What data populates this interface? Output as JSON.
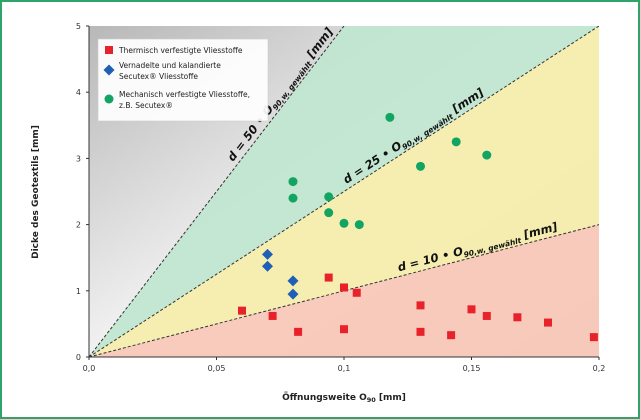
{
  "chart_data": {
    "type": "scatter",
    "xlabel": "Öffnungsweite O90 [mm]",
    "xlabel_main": "Öffnungsweite O",
    "xlabel_sub": "90",
    "xlabel_unit": " [mm]",
    "ylabel": "Dicke des Geotextils [mm]",
    "xlim": [
      0,
      0.2
    ],
    "ylim": [
      0,
      5
    ],
    "x_ticks": [
      "0,0",
      "0,05",
      "0,1",
      "0,15",
      "0,2"
    ],
    "x_tick_values": [
      0,
      0.05,
      0.1,
      0.15,
      0.2
    ],
    "y_ticks": [
      "0",
      "1",
      "2",
      "3",
      "4",
      "5"
    ],
    "y_tick_values": [
      0,
      1,
      2,
      3,
      4,
      5
    ],
    "grid": false,
    "legend_position": "top-left",
    "bands": [
      {
        "factor": 50,
        "color": "#e6e6e6",
        "label_main": "d = 50 • O",
        "label_sub": "90,w, gewählt",
        "label_end": " [mm]"
      },
      {
        "factor": 25,
        "color": "#bfe6cf",
        "label_main": "d = 25 • O",
        "label_sub": "90,w, gewählt",
        "label_end": " [mm]"
      },
      {
        "factor": 10,
        "color": "#f6eeaa",
        "label_main": "d = 10 • O",
        "label_sub": "90,w, gewählt",
        "label_end": " [mm]"
      },
      {
        "factor": 0,
        "color": "#f8c8b8"
      }
    ],
    "series": [
      {
        "name": "Thermisch verfestigte Vliesstoffe",
        "marker": "square",
        "color": "#e8222a",
        "points": [
          [
            0.06,
            0.7
          ],
          [
            0.072,
            0.62
          ],
          [
            0.082,
            0.38
          ],
          [
            0.094,
            1.2
          ],
          [
            0.1,
            1.05
          ],
          [
            0.1,
            0.42
          ],
          [
            0.105,
            0.97
          ],
          [
            0.13,
            0.78
          ],
          [
            0.13,
            0.38
          ],
          [
            0.142,
            0.33
          ],
          [
            0.15,
            0.72
          ],
          [
            0.156,
            0.62
          ],
          [
            0.168,
            0.6
          ],
          [
            0.18,
            0.52
          ],
          [
            0.198,
            0.3
          ]
        ]
      },
      {
        "name": "Vernadelte und kalandierte Secutex® Vliesstoffe",
        "legend_lines": [
          "Vernadelte und kalandierte",
          "Secutex® Vliesstoffe"
        ],
        "marker": "diamond",
        "color": "#1f5fb5",
        "points": [
          [
            0.07,
            1.55
          ],
          [
            0.07,
            1.37
          ],
          [
            0.08,
            1.15
          ],
          [
            0.08,
            0.95
          ]
        ]
      },
      {
        "name": "Mechanisch verfestigte Vliesstoffe, z.B. Secutex®",
        "legend_lines": [
          "Mechanisch verfestigte Vliesstoffe,",
          "z.B. Secutex®"
        ],
        "marker": "circle",
        "color": "#12a463",
        "points": [
          [
            0.08,
            2.65
          ],
          [
            0.08,
            2.4
          ],
          [
            0.094,
            2.42
          ],
          [
            0.094,
            2.18
          ],
          [
            0.1,
            2.02
          ],
          [
            0.106,
            2.0
          ],
          [
            0.118,
            3.62
          ],
          [
            0.13,
            2.88
          ],
          [
            0.144,
            3.25
          ],
          [
            0.156,
            3.05
          ]
        ]
      }
    ]
  }
}
